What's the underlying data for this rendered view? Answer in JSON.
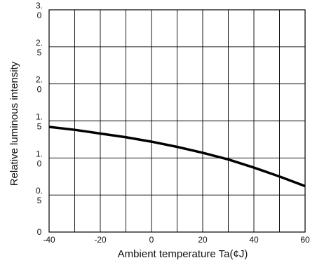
{
  "chart_data": {
    "type": "line",
    "title": "",
    "xlabel": "Ambient temperature Ta(¢J)",
    "ylabel": "Relative luminous intensity",
    "xlim": [
      -40,
      60
    ],
    "ylim": [
      0,
      3.0
    ],
    "x_ticks": [
      -40,
      -30,
      -20,
      -10,
      0,
      10,
      20,
      30,
      40,
      50,
      60
    ],
    "x_tick_labels": [
      {
        "value": -40,
        "label": "-40"
      },
      {
        "value": -20,
        "label": "-20"
      },
      {
        "value": 0,
        "label": "0"
      },
      {
        "value": 20,
        "label": "20"
      },
      {
        "value": 40,
        "label": "40"
      },
      {
        "value": 60,
        "label": "60"
      }
    ],
    "y_ticks": [
      0,
      0.5,
      1.0,
      1.5,
      2.0,
      2.5,
      3.0
    ],
    "y_tick_labels": [
      {
        "value": 0,
        "line1": "0",
        "line2": ""
      },
      {
        "value": 0.5,
        "line1": "0.",
        "line2": "5"
      },
      {
        "value": 1.0,
        "line1": "1.",
        "line2": "0"
      },
      {
        "value": 1.5,
        "line1": "1.",
        "line2": "5"
      },
      {
        "value": 2.0,
        "line1": "2.",
        "line2": "0"
      },
      {
        "value": 2.5,
        "line1": "2.",
        "line2": "5"
      },
      {
        "value": 3.0,
        "line1": "3.",
        "line2": "0"
      }
    ],
    "grid": true,
    "series": [
      {
        "x": [
          -40,
          -30,
          -20,
          -10,
          0,
          10,
          20,
          30,
          40,
          50,
          60
        ],
        "y": [
          1.42,
          1.38,
          1.33,
          1.28,
          1.22,
          1.15,
          1.07,
          0.98,
          0.87,
          0.75,
          0.62
        ],
        "color": "#000000"
      }
    ]
  }
}
